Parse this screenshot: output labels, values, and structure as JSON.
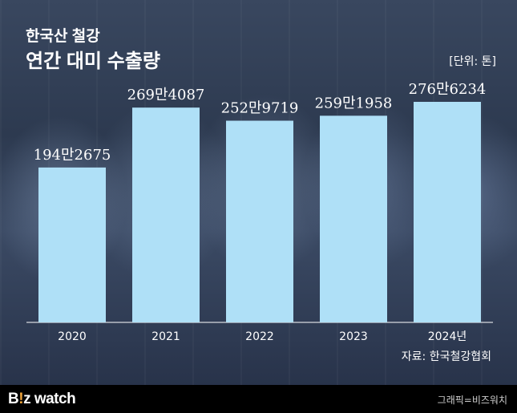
{
  "header": {
    "title_line1": "한국산 철강",
    "title_line2": "연간 대미 수출량",
    "unit": "[단위: 톤]"
  },
  "source": "자료: 한국철강협회",
  "footer": {
    "logo_prefix": "B",
    "logo_dot": "!",
    "logo_suffix": "z watch",
    "credit": "그래픽=비즈워치"
  },
  "colors": {
    "bar": "#afe0f7",
    "footer_bg": "#000000",
    "logo_accent": "#f0a43a"
  },
  "chart_data": {
    "type": "bar",
    "categories": [
      "2020",
      "2021",
      "2022",
      "2023",
      "2024년"
    ],
    "values": [
      1942675,
      2694087,
      2529719,
      2591958,
      2766234
    ],
    "value_labels": [
      "194만2675",
      "269만4087",
      "252만9719",
      "259만1958",
      "276만6234"
    ],
    "title": "한국산 철강 연간 대미 수출량",
    "ylabel": "",
    "xlabel": ""
  }
}
